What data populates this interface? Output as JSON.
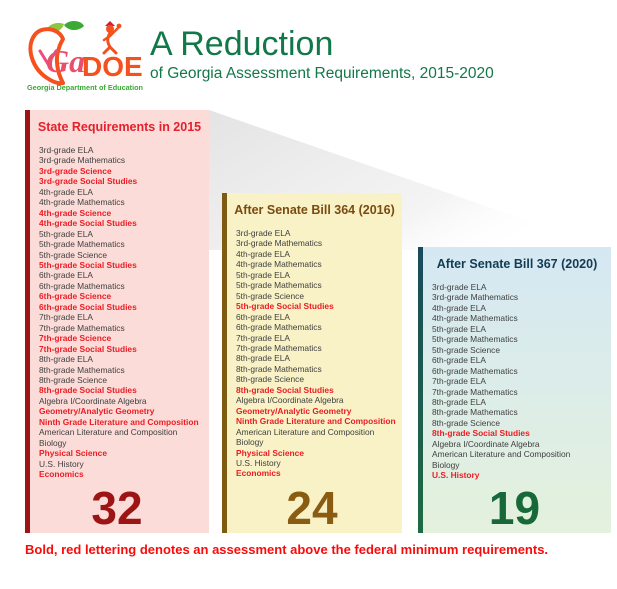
{
  "header": {
    "logo": {
      "ga": "Ga",
      "doe": "DOE",
      "caption": "Georgia Department of Education"
    },
    "title": "A Reduction",
    "subtitle": "of Georgia Assessment Requirements, 2015-2020"
  },
  "columns": [
    {
      "header": "State Requirements in 2015",
      "count": 32,
      "items": [
        {
          "label": "3rd-grade ELA",
          "red": false
        },
        {
          "label": "3rd-grade Mathematics",
          "red": false
        },
        {
          "label": "3rd-grade Science",
          "red": true
        },
        {
          "label": "3rd-grade Social Studies",
          "red": true
        },
        {
          "label": "4th-grade ELA",
          "red": false
        },
        {
          "label": "4th-grade Mathematics",
          "red": false
        },
        {
          "label": "4th-grade Science",
          "red": true
        },
        {
          "label": "4th-grade Social Studies",
          "red": true
        },
        {
          "label": "5th-grade ELA",
          "red": false
        },
        {
          "label": "5th-grade Mathematics",
          "red": false
        },
        {
          "label": "5th-grade Science",
          "red": false
        },
        {
          "label": "5th-grade Social Studies",
          "red": true
        },
        {
          "label": "6th-grade ELA",
          "red": false
        },
        {
          "label": "6th-grade Mathematics",
          "red": false
        },
        {
          "label": "6th-grade Science",
          "red": true
        },
        {
          "label": "6th-grade Social Studies",
          "red": true
        },
        {
          "label": "7th-grade ELA",
          "red": false
        },
        {
          "label": "7th-grade Mathematics",
          "red": false
        },
        {
          "label": "7th-grade Science",
          "red": true
        },
        {
          "label": "7th-grade Social Studies",
          "red": true
        },
        {
          "label": "8th-grade ELA",
          "red": false
        },
        {
          "label": "8th-grade Mathematics",
          "red": false
        },
        {
          "label": "8th-grade Science",
          "red": false
        },
        {
          "label": "8th-grade Social Studies",
          "red": true
        },
        {
          "label": "Algebra I/Coordinate Algebra",
          "red": false
        },
        {
          "label": "Geometry/Analytic Geometry",
          "red": true
        },
        {
          "label": "Ninth Grade Literature and Composition",
          "red": true
        },
        {
          "label": "American Literature and Composition",
          "red": false
        },
        {
          "label": "Biology",
          "red": false
        },
        {
          "label": "Physical Science",
          "red": true
        },
        {
          "label": "U.S. History",
          "red": false
        },
        {
          "label": "Economics",
          "red": true
        }
      ]
    },
    {
      "header": "After Senate Bill 364 (2016)",
      "count": 24,
      "items": [
        {
          "label": "3rd-grade ELA",
          "red": false
        },
        {
          "label": "3rd-grade Mathematics",
          "red": false
        },
        {
          "label": "4th-grade ELA",
          "red": false
        },
        {
          "label": "4th-grade Mathematics",
          "red": false
        },
        {
          "label": "5th-grade ELA",
          "red": false
        },
        {
          "label": "5th-grade Mathematics",
          "red": false
        },
        {
          "label": "5th-grade Science",
          "red": false
        },
        {
          "label": "5th-grade Social Studies",
          "red": true
        },
        {
          "label": "6th-grade ELA",
          "red": false
        },
        {
          "label": "6th-grade Mathematics",
          "red": false
        },
        {
          "label": "7th-grade ELA",
          "red": false
        },
        {
          "label": "7th-grade Mathematics",
          "red": false
        },
        {
          "label": "8th-grade ELA",
          "red": false
        },
        {
          "label": "8th-grade Mathematics",
          "red": false
        },
        {
          "label": "8th-grade Science",
          "red": false
        },
        {
          "label": "8th-grade Social Studies",
          "red": true
        },
        {
          "label": "Algebra I/Coordinate Algebra",
          "red": false
        },
        {
          "label": "Geometry/Analytic Geometry",
          "red": true
        },
        {
          "label": "Ninth Grade Literature and Composition",
          "red": true
        },
        {
          "label": "American Literature and Composition",
          "red": false
        },
        {
          "label": "Biology",
          "red": false
        },
        {
          "label": "Physical Science",
          "red": true
        },
        {
          "label": "U.S. History",
          "red": false
        },
        {
          "label": "Economics",
          "red": true
        }
      ]
    },
    {
      "header": "After Senate Bill 367 (2020)",
      "count": 19,
      "items": [
        {
          "label": "3rd-grade ELA",
          "red": false
        },
        {
          "label": "3rd-grade Mathematics",
          "red": false
        },
        {
          "label": "4th-grade ELA",
          "red": false
        },
        {
          "label": "4th-grade Mathematics",
          "red": false
        },
        {
          "label": "5th-grade ELA",
          "red": false
        },
        {
          "label": "5th-grade Mathematics",
          "red": false
        },
        {
          "label": "5th-grade Science",
          "red": false
        },
        {
          "label": "6th-grade ELA",
          "red": false
        },
        {
          "label": "6th-grade Mathematics",
          "red": false
        },
        {
          "label": "7th-grade ELA",
          "red": false
        },
        {
          "label": "7th-grade Mathematics",
          "red": false
        },
        {
          "label": "8th-grade ELA",
          "red": false
        },
        {
          "label": "8th-grade Mathematics",
          "red": false
        },
        {
          "label": "8th-grade Science",
          "red": false
        },
        {
          "label": "8th-grade Social Studies",
          "red": true
        },
        {
          "label": "Algebra I/Coordinate Algebra",
          "red": false
        },
        {
          "label": "American Literature and Composition",
          "red": false
        },
        {
          "label": "Biology",
          "red": false
        },
        {
          "label": "U.S. History",
          "red": true
        }
      ]
    }
  ],
  "footnote": "Bold, red lettering denotes an assessment above the federal minimum requirements.",
  "colors": {
    "title-green": "#12784a",
    "col1-bg": "#fbdcd8",
    "col1-bar": "#9c1414",
    "col1-header": "#e5202c",
    "col1-count": "#9c1414",
    "col2-bg": "#f8f2c6",
    "col2-bar": "#7d5c12",
    "col2-header": "#7a4b10",
    "col2-count": "#8a5c12",
    "col3-bg-top": "#d5e8f3",
    "col3-bg-bottom": "#e4f1dd",
    "col3-bar-top": "#1a4a5c",
    "col3-bar-bottom": "#1f6b42",
    "col3-header": "#123c52",
    "col3-count": "#17693a",
    "item-text": "#3f3f3f",
    "item-red": "#ec1c24",
    "footnote-red": "#fb0a0a",
    "wedge-gray": "#e2e2e2"
  }
}
